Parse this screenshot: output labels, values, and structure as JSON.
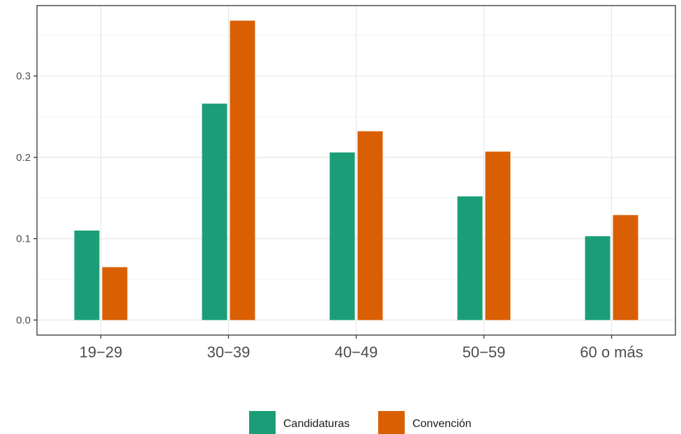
{
  "chart_data": {
    "type": "bar",
    "categories": [
      "19−29",
      "30−39",
      "40−49",
      "50−59",
      "60 o más"
    ],
    "series": [
      {
        "name": "Candidaturas",
        "color": "#1b9e77",
        "values": [
          0.11,
          0.266,
          0.206,
          0.152,
          0.103
        ]
      },
      {
        "name": "Convención",
        "color": "#d95f02",
        "values": [
          0.065,
          0.368,
          0.232,
          0.207,
          0.129
        ]
      }
    ],
    "y_ticks": [
      0.0,
      0.1,
      0.2,
      0.3
    ],
    "y_tick_labels": [
      "0.0",
      "0.1",
      "0.2",
      "0.3"
    ],
    "ylim": [
      -0.0185,
      0.3865
    ],
    "grid": true,
    "legend": "bottom"
  }
}
